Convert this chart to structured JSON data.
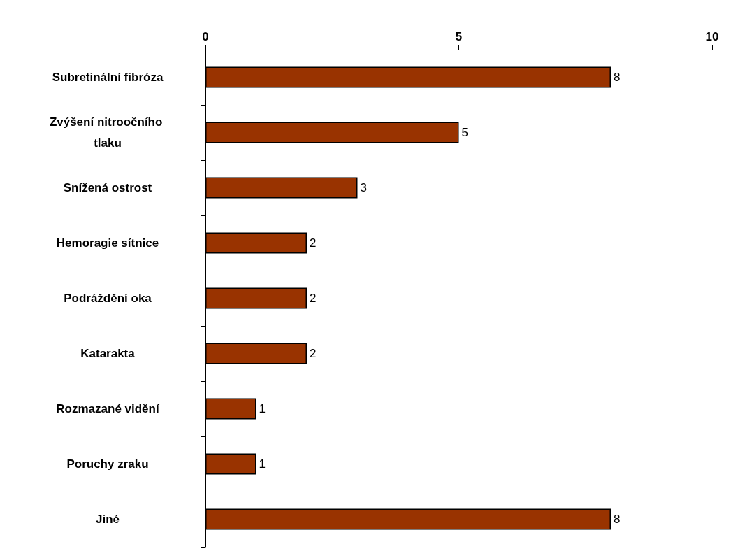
{
  "chart_data": {
    "type": "bar",
    "orientation": "horizontal",
    "categories": [
      "Subretinální fibróza",
      "Zvýšení nitroočního tlaku",
      "Snížená ostrost",
      "Hemoragie sítnice",
      "Podráždění oka",
      "Katarakta",
      "Rozmazané vidění",
      "Poruchy zraku",
      "Jiné"
    ],
    "values": [
      8,
      5,
      3,
      2,
      2,
      2,
      1,
      1,
      8
    ],
    "color": "#993300",
    "xlim": [
      0,
      10
    ],
    "xticks": [
      0,
      5,
      10
    ],
    "data_labels": true
  }
}
